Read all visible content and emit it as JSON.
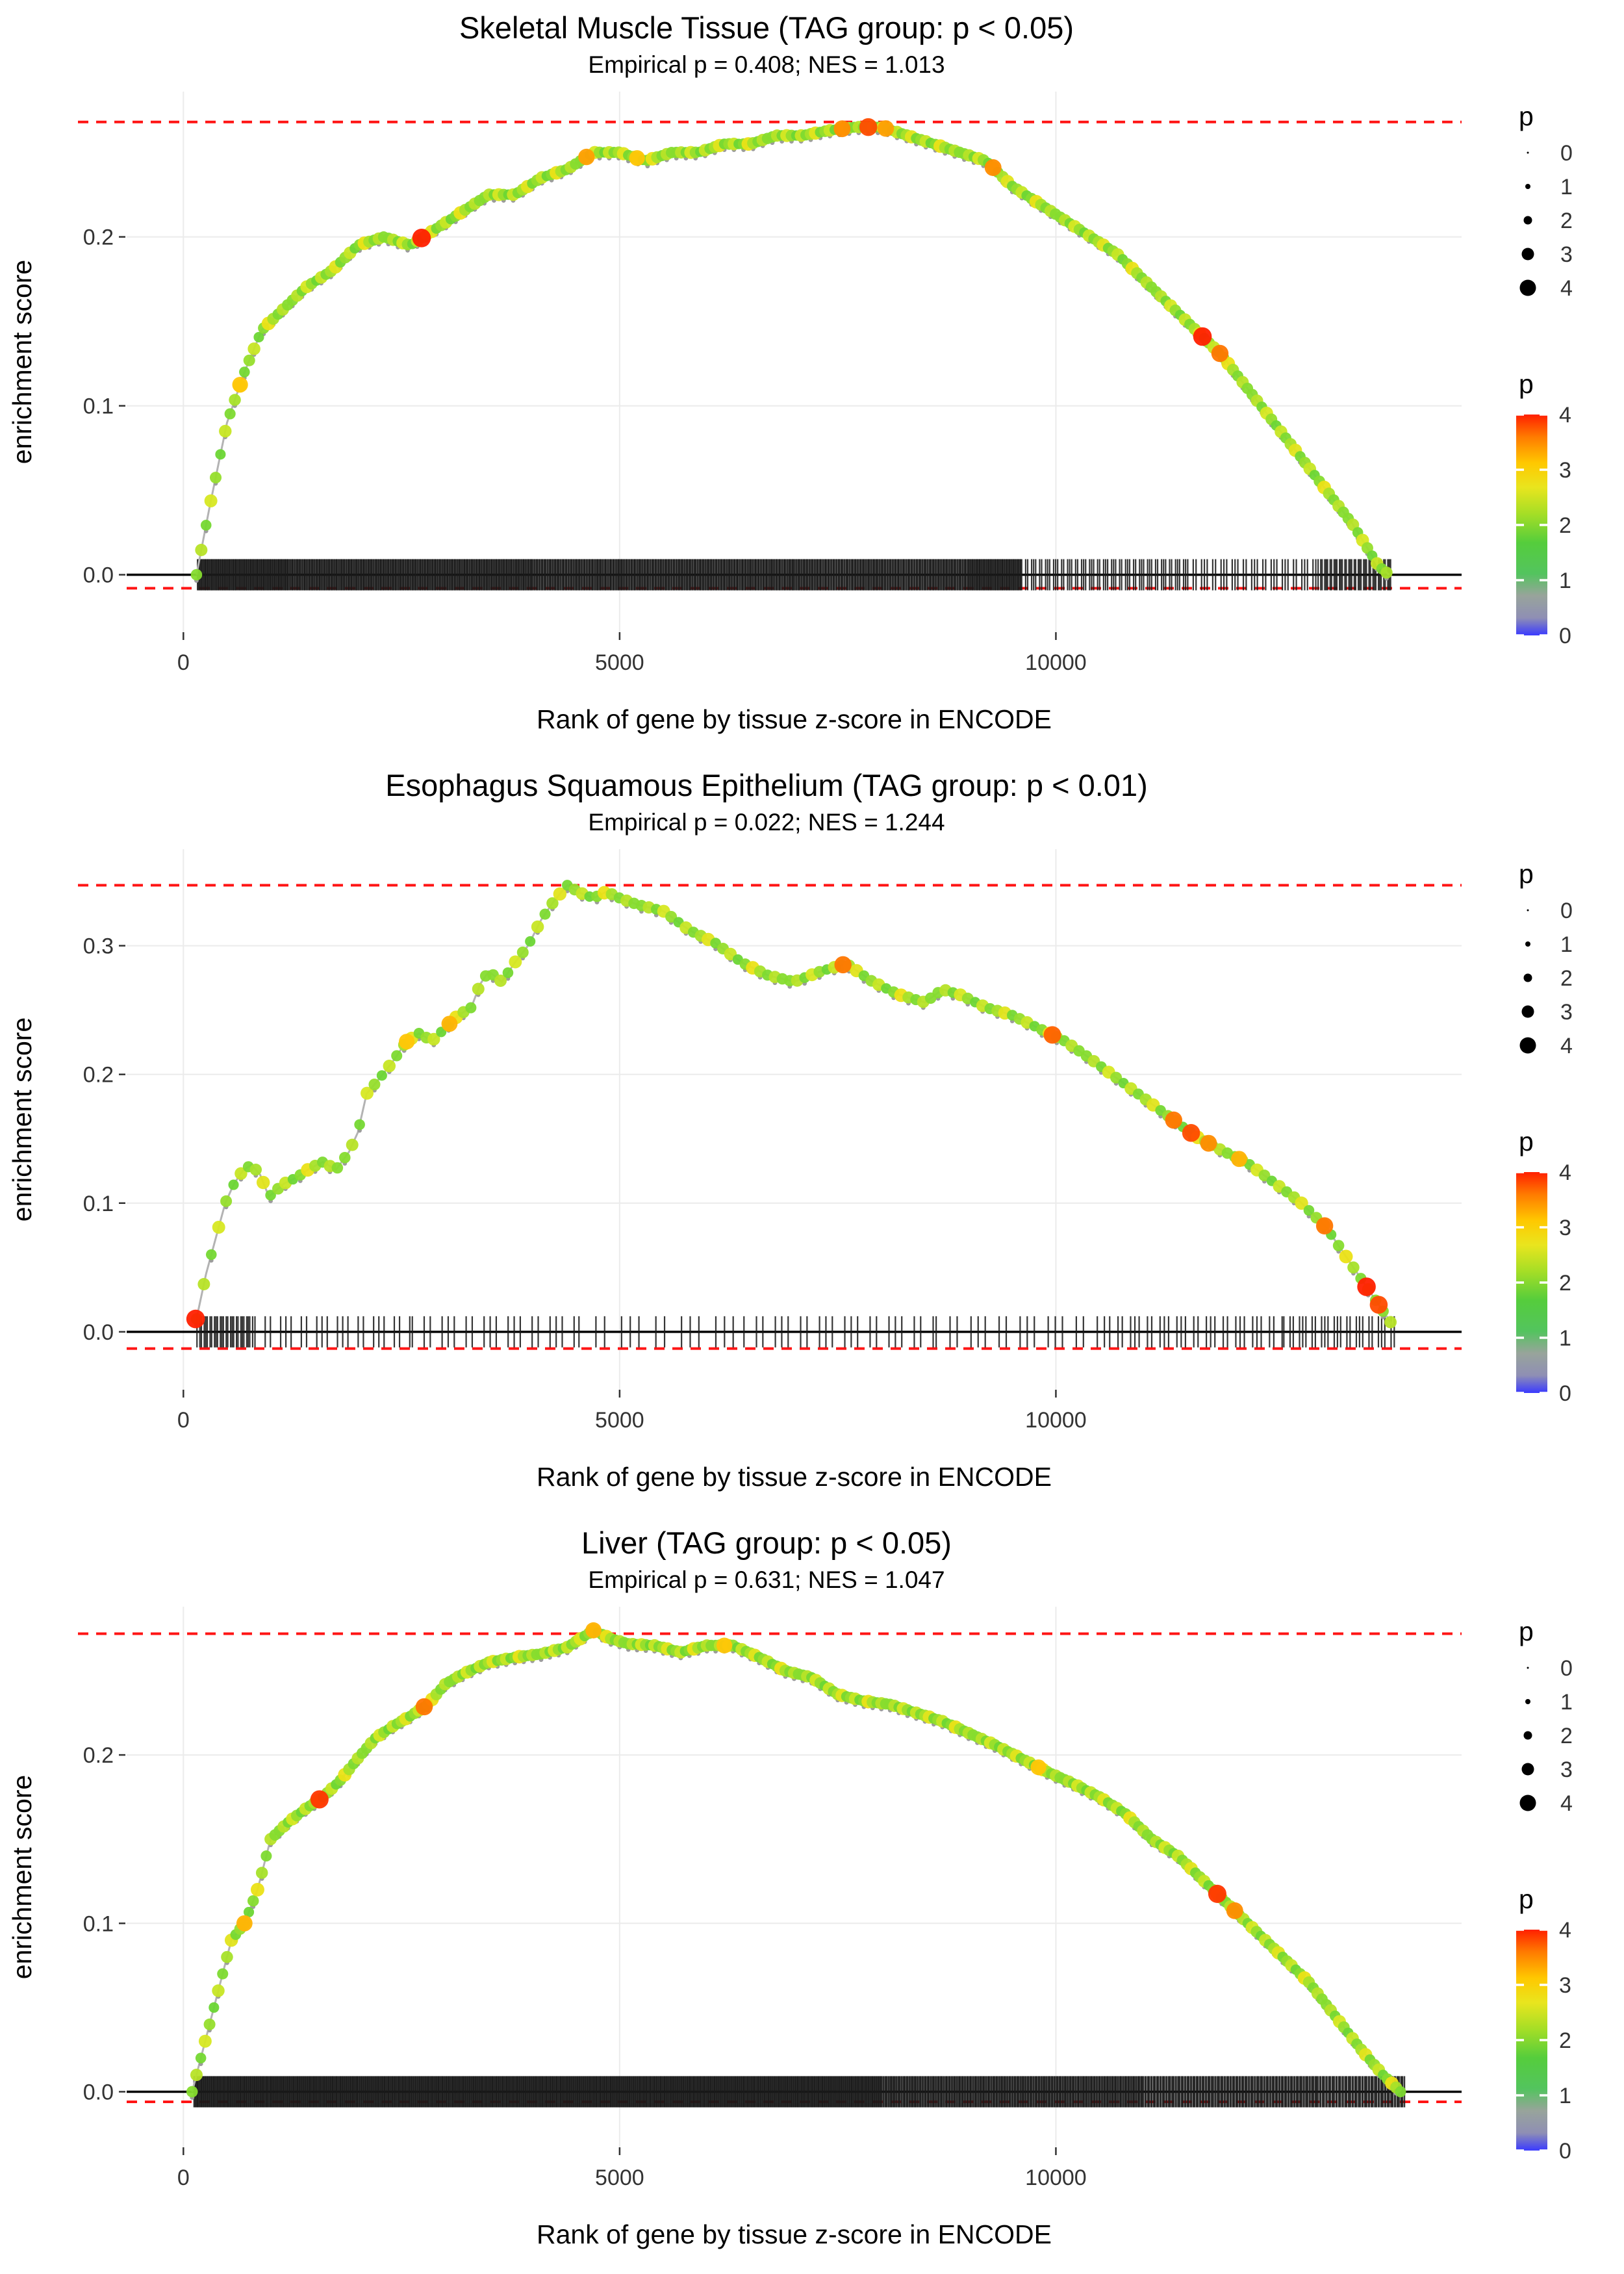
{
  "page": {
    "background": "#ffffff"
  },
  "colors": {
    "dashed_line": "#ff1414",
    "zero_line": "#000000",
    "grid": "#ebebeb",
    "rug": "#1a1a1a",
    "grey_line": "#b3b3b3",
    "grey_dot": "#9c9c9c",
    "tick_label": "#333333",
    "text": "#000000"
  },
  "legend": {
    "size_title": "p",
    "size_values": [
      0,
      1,
      2,
      3,
      4
    ],
    "color_title": "p",
    "color_tick_labels": [
      4,
      3,
      2,
      1,
      0
    ],
    "colorbar_stops": [
      [
        0,
        "#ff2000"
      ],
      [
        0.1,
        "#ff7a00"
      ],
      [
        0.22,
        "#ffc800"
      ],
      [
        0.33,
        "#e9e51e"
      ],
      [
        0.45,
        "#a5de26"
      ],
      [
        0.58,
        "#55cd3c"
      ],
      [
        0.72,
        "#53c45e"
      ],
      [
        0.82,
        "#98a49b"
      ],
      [
        0.92,
        "#8f8fb4"
      ],
      [
        1,
        "#3a3aff"
      ]
    ],
    "dot_color_stops": [
      [
        0,
        "#3a3aff"
      ],
      [
        0.9,
        "#9a9a9a"
      ],
      [
        1.6,
        "#52cf3a"
      ],
      [
        2.2,
        "#86dc2e"
      ],
      [
        2.7,
        "#d7e822"
      ],
      [
        3.1,
        "#ffd90a"
      ],
      [
        3.5,
        "#ff8c00"
      ],
      [
        4,
        "#ff2000"
      ]
    ],
    "dot_p_pattern": [
      2.2,
      2.5,
      2.0,
      2.7,
      2.3,
      1.9,
      2.6,
      2.1,
      2.4,
      2.8,
      2.0,
      2.3,
      2.6,
      1.9,
      2.2,
      2.9,
      2.4,
      2.1,
      2.5,
      2.2
    ]
  },
  "chart_data": [
    {
      "type": "line",
      "title": "Skeletal Muscle Tissue (TAG group: p < 0.05)",
      "subtitle": "Empirical p = 0.408; NES = 1.013",
      "xlabel": "Rank of gene by tissue z-score in ENCODE",
      "ylabel": "enrichment score",
      "xlim": [
        -650,
        14650
      ],
      "ylim": [
        -0.034,
        0.286
      ],
      "xticks": [
        0,
        5000,
        10000
      ],
      "yticks": [
        0.0,
        0.1,
        0.2
      ],
      "es_max_line": 0.268,
      "es_min_line": -0.008,
      "zero_line": 0,
      "dot_step": 55,
      "curve": [
        [
          150,
          0
        ],
        [
          300,
          0.04
        ],
        [
          500,
          0.09
        ],
        [
          700,
          0.12
        ],
        [
          900,
          0.145
        ],
        [
          1100,
          0.155
        ],
        [
          1400,
          0.17
        ],
        [
          1700,
          0.18
        ],
        [
          2000,
          0.195
        ],
        [
          2300,
          0.2
        ],
        [
          2600,
          0.195
        ],
        [
          2900,
          0.205
        ],
        [
          3200,
          0.215
        ],
        [
          3500,
          0.225
        ],
        [
          3800,
          0.225
        ],
        [
          4100,
          0.235
        ],
        [
          4400,
          0.24
        ],
        [
          4700,
          0.25
        ],
        [
          5000,
          0.25
        ],
        [
          5300,
          0.245
        ],
        [
          5600,
          0.25
        ],
        [
          5900,
          0.25
        ],
        [
          6200,
          0.255
        ],
        [
          6500,
          0.255
        ],
        [
          6800,
          0.26
        ],
        [
          7100,
          0.26
        ],
        [
          7400,
          0.263
        ],
        [
          7700,
          0.265
        ],
        [
          8000,
          0.265
        ],
        [
          8300,
          0.26
        ],
        [
          8600,
          0.255
        ],
        [
          8900,
          0.25
        ],
        [
          9200,
          0.245
        ],
        [
          9500,
          0.23
        ],
        [
          9800,
          0.22
        ],
        [
          10100,
          0.21
        ],
        [
          10400,
          0.2
        ],
        [
          10700,
          0.19
        ],
        [
          11000,
          0.175
        ],
        [
          11300,
          0.16
        ],
        [
          11600,
          0.145
        ],
        [
          11900,
          0.13
        ],
        [
          12200,
          0.11
        ],
        [
          12500,
          0.09
        ],
        [
          12800,
          0.07
        ],
        [
          13100,
          0.05
        ],
        [
          13400,
          0.03
        ],
        [
          13700,
          0.005
        ],
        [
          13820,
          0
        ]
      ],
      "highlights": [
        [
          650,
          3.2
        ],
        [
          2730,
          4
        ],
        [
          4620,
          3.4
        ],
        [
          5200,
          3.2
        ],
        [
          7550,
          3.5
        ],
        [
          7850,
          3.8
        ],
        [
          8050,
          3.4
        ],
        [
          9280,
          3.5
        ],
        [
          11680,
          4
        ],
        [
          11880,
          3.6
        ]
      ],
      "rug_segments": [
        [
          160,
          1200,
          110
        ],
        [
          1200,
          4000,
          260
        ],
        [
          4000,
          7000,
          260
        ],
        [
          7000,
          9000,
          170
        ],
        [
          9000,
          9600,
          60
        ],
        [
          9600,
          11500,
          60
        ],
        [
          11500,
          13000,
          34
        ],
        [
          13000,
          13850,
          40
        ]
      ]
    },
    {
      "type": "line",
      "title": "Esophagus Squamous Epithelium (TAG group: p < 0.01)",
      "subtitle": "Empirical p = 0.022; NES = 1.244",
      "xlabel": "Rank of gene by tissue z-score in ENCODE",
      "ylabel": "enrichment score",
      "xlim": [
        -650,
        14650
      ],
      "ylim": [
        -0.045,
        0.375
      ],
      "xticks": [
        0,
        5000,
        10000
      ],
      "yticks": [
        0.0,
        0.1,
        0.2,
        0.3
      ],
      "es_max_line": 0.347,
      "es_min_line": -0.013,
      "zero_line": 0,
      "dot_step": 85,
      "curve": [
        [
          150,
          0.01
        ],
        [
          260,
          0.045
        ],
        [
          380,
          0.075
        ],
        [
          480,
          0.1
        ],
        [
          580,
          0.115
        ],
        [
          680,
          0.125
        ],
        [
          780,
          0.13
        ],
        [
          880,
          0.122
        ],
        [
          980,
          0.105
        ],
        [
          1150,
          0.115
        ],
        [
          1300,
          0.12
        ],
        [
          1450,
          0.127
        ],
        [
          1600,
          0.132
        ],
        [
          1750,
          0.126
        ],
        [
          1900,
          0.14
        ],
        [
          2000,
          0.155
        ],
        [
          2100,
          0.185
        ],
        [
          2250,
          0.197
        ],
        [
          2400,
          0.21
        ],
        [
          2550,
          0.225
        ],
        [
          2700,
          0.232
        ],
        [
          2850,
          0.226
        ],
        [
          3000,
          0.236
        ],
        [
          3150,
          0.246
        ],
        [
          3300,
          0.252
        ],
        [
          3400,
          0.27
        ],
        [
          3500,
          0.28
        ],
        [
          3650,
          0.272
        ],
        [
          3800,
          0.287
        ],
        [
          3950,
          0.3
        ],
        [
          4100,
          0.32
        ],
        [
          4250,
          0.335
        ],
        [
          4400,
          0.347
        ],
        [
          4550,
          0.341
        ],
        [
          4700,
          0.337
        ],
        [
          4850,
          0.342
        ],
        [
          5000,
          0.337
        ],
        [
          5200,
          0.332
        ],
        [
          5500,
          0.327
        ],
        [
          5800,
          0.312
        ],
        [
          6100,
          0.302
        ],
        [
          6400,
          0.287
        ],
        [
          6700,
          0.277
        ],
        [
          7000,
          0.272
        ],
        [
          7300,
          0.28
        ],
        [
          7600,
          0.286
        ],
        [
          7900,
          0.272
        ],
        [
          8200,
          0.262
        ],
        [
          8500,
          0.256
        ],
        [
          8700,
          0.266
        ],
        [
          8900,
          0.262
        ],
        [
          9200,
          0.252
        ],
        [
          9500,
          0.246
        ],
        [
          9800,
          0.236
        ],
        [
          10100,
          0.226
        ],
        [
          10400,
          0.212
        ],
        [
          10700,
          0.197
        ],
        [
          11000,
          0.182
        ],
        [
          11300,
          0.167
        ],
        [
          11600,
          0.152
        ],
        [
          11900,
          0.141
        ],
        [
          12200,
          0.131
        ],
        [
          12500,
          0.116
        ],
        [
          12800,
          0.101
        ],
        [
          13100,
          0.081
        ],
        [
          13400,
          0.051
        ],
        [
          13600,
          0.031
        ],
        [
          13750,
          0.016
        ],
        [
          13870,
          0.004
        ]
      ],
      "highlights": [
        [
          140,
          4
        ],
        [
          2560,
          3.2
        ],
        [
          3050,
          3.3
        ],
        [
          7560,
          3.6
        ],
        [
          9960,
          3.7
        ],
        [
          11350,
          3.6
        ],
        [
          11550,
          3.8
        ],
        [
          11750,
          3.5
        ],
        [
          12100,
          3.3
        ],
        [
          13080,
          3.6
        ],
        [
          13560,
          4
        ],
        [
          13700,
          3.8
        ]
      ],
      "rug_segments": [
        [
          150,
          800,
          28
        ],
        [
          800,
          2600,
          22
        ],
        [
          2600,
          4500,
          20
        ],
        [
          4500,
          6400,
          14
        ],
        [
          6400,
          8600,
          22
        ],
        [
          8600,
          10600,
          18
        ],
        [
          10600,
          12600,
          30
        ],
        [
          12600,
          13900,
          26
        ]
      ]
    },
    {
      "type": "line",
      "title": "Liver (TAG group: p < 0.05)",
      "subtitle": "Empirical p = 0.631; NES = 1.047",
      "xlabel": "Rank of gene by tissue z-score in ENCODE",
      "ylabel": "enrichment score",
      "xlim": [
        -650,
        14650
      ],
      "ylim": [
        -0.033,
        0.288
      ],
      "xticks": [
        0,
        5000,
        10000
      ],
      "yticks": [
        0.0,
        0.1,
        0.2
      ],
      "es_max_line": 0.272,
      "es_min_line": -0.006,
      "zero_line": 0,
      "dot_step": 50,
      "curve": [
        [
          100,
          0
        ],
        [
          250,
          0.03
        ],
        [
          400,
          0.06
        ],
        [
          550,
          0.09
        ],
        [
          700,
          0.1
        ],
        [
          850,
          0.12
        ],
        [
          1000,
          0.15
        ],
        [
          1200,
          0.16
        ],
        [
          1400,
          0.168
        ],
        [
          1600,
          0.175
        ],
        [
          1800,
          0.185
        ],
        [
          2000,
          0.198
        ],
        [
          2200,
          0.21
        ],
        [
          2400,
          0.217
        ],
        [
          2600,
          0.223
        ],
        [
          2800,
          0.23
        ],
        [
          3000,
          0.242
        ],
        [
          3200,
          0.248
        ],
        [
          3500,
          0.255
        ],
        [
          3800,
          0.258
        ],
        [
          4100,
          0.26
        ],
        [
          4400,
          0.264
        ],
        [
          4700,
          0.274
        ],
        [
          4900,
          0.269
        ],
        [
          5100,
          0.266
        ],
        [
          5400,
          0.265
        ],
        [
          5700,
          0.261
        ],
        [
          6000,
          0.265
        ],
        [
          6300,
          0.265
        ],
        [
          6600,
          0.258
        ],
        [
          6900,
          0.25
        ],
        [
          7200,
          0.246
        ],
        [
          7500,
          0.236
        ],
        [
          7800,
          0.232
        ],
        [
          8100,
          0.23
        ],
        [
          8400,
          0.225
        ],
        [
          8700,
          0.22
        ],
        [
          9000,
          0.213
        ],
        [
          9300,
          0.206
        ],
        [
          9600,
          0.198
        ],
        [
          9900,
          0.19
        ],
        [
          10200,
          0.183
        ],
        [
          10500,
          0.175
        ],
        [
          10800,
          0.165
        ],
        [
          11100,
          0.15
        ],
        [
          11400,
          0.14
        ],
        [
          11700,
          0.125
        ],
        [
          12000,
          0.11
        ],
        [
          12300,
          0.095
        ],
        [
          12600,
          0.08
        ],
        [
          12900,
          0.065
        ],
        [
          13200,
          0.045
        ],
        [
          13500,
          0.025
        ],
        [
          13750,
          0.01
        ],
        [
          13950,
          0
        ]
      ],
      "highlights": [
        [
          700,
          3.3
        ],
        [
          1560,
          3.9
        ],
        [
          2760,
          3.6
        ],
        [
          4700,
          3.3
        ],
        [
          6200,
          3.2
        ],
        [
          9800,
          3.2
        ],
        [
          11850,
          3.9
        ],
        [
          12050,
          3.5
        ]
      ],
      "rug_segments": [
        [
          120,
          2000,
          210
        ],
        [
          2000,
          5000,
          330
        ],
        [
          5000,
          8000,
          330
        ],
        [
          8000,
          11000,
          260
        ],
        [
          11000,
          13000,
          150
        ],
        [
          13000,
          14000,
          70
        ]
      ]
    }
  ]
}
